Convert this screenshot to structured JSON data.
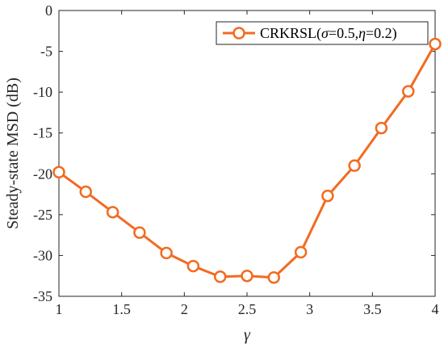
{
  "chart_data": {
    "type": "line",
    "title": "",
    "xlabel": "γ",
    "ylabel": "Steady-state MSD (dB)",
    "xlim": [
      1,
      4
    ],
    "ylim": [
      -35,
      0
    ],
    "xticks": [
      1,
      1.5,
      2,
      2.5,
      3,
      3.5,
      4
    ],
    "xtick_labels": [
      "1",
      "1.5",
      "2",
      "2.5",
      "3",
      "3.5",
      "4"
    ],
    "yticks": [
      -35,
      -30,
      -25,
      -20,
      -15,
      -10,
      -5,
      0
    ],
    "ytick_labels": [
      "-35",
      "-30",
      "-25",
      "-20",
      "-15",
      "-10",
      "-5",
      "0"
    ],
    "grid": false,
    "legend_position": "top-right",
    "series": [
      {
        "name": "CRKRSL(σ=0.5,η=0.2)",
        "legend_parts": [
          "CRKRSL(",
          "σ",
          "=0.5,",
          "η",
          "=0.2)"
        ],
        "color": "#f26b21",
        "marker": "circle",
        "x": [
          1.0,
          1.214,
          1.429,
          1.643,
          1.857,
          2.071,
          2.286,
          2.5,
          2.714,
          2.929,
          3.143,
          3.357,
          3.571,
          3.786,
          4.0
        ],
        "y": [
          -19.8,
          -22.2,
          -24.7,
          -27.2,
          -29.7,
          -31.3,
          -32.6,
          -32.5,
          -32.7,
          -29.6,
          -22.7,
          -19.0,
          -14.4,
          -9.9,
          -4.1
        ]
      }
    ]
  }
}
